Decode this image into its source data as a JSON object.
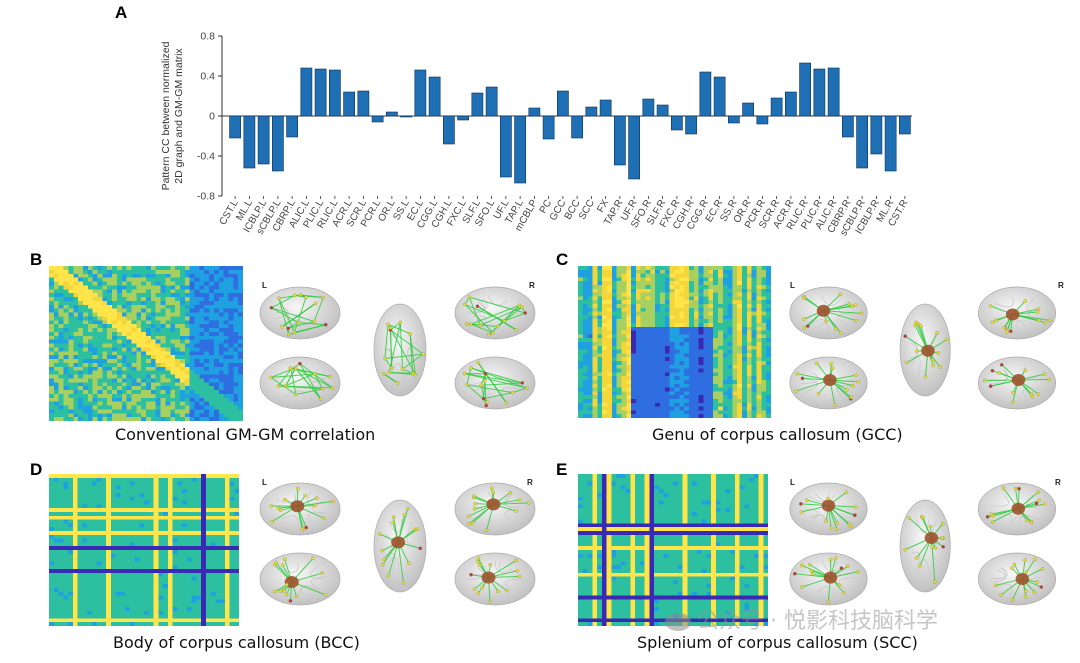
{
  "panels": {
    "a": {
      "letter": "A"
    },
    "b": {
      "letter": "B",
      "caption": "Conventional GM-GM correlation",
      "hemi_left": "L",
      "hemi_right": "R"
    },
    "c": {
      "letter": "C",
      "caption": "Genu of corpus callosum (GCC)",
      "hemi_left": "L",
      "hemi_right": "R"
    },
    "d": {
      "letter": "D",
      "caption": "Body of corpus callosum (BCC)",
      "hemi_left": "L",
      "hemi_right": "R"
    },
    "e": {
      "letter": "E",
      "caption": "Splenium of corpus callosum (SCC)",
      "hemi_left": "L",
      "hemi_right": "R"
    }
  },
  "watermark": {
    "text": "公众号 · 悦影科技脑科学"
  },
  "colors": {
    "bar": "#1f6fb5",
    "bar_edge": "#0b2f55",
    "edge_green": "#2ecc40",
    "node_yellow": "#e8e020",
    "node_red": "#c0392b",
    "tract_brown": "#a0522d",
    "matrix_palette": [
      "#3a2ab3",
      "#2f6ee0",
      "#1fa0e0",
      "#2cc0a0",
      "#a8d060",
      "#f5d63a",
      "#ffe44a"
    ]
  },
  "chart_data": {
    "type": "bar",
    "ylabel": "Pattern CC between normalized 2D graph and GM-GM matrix",
    "ylim": [
      -0.8,
      0.8
    ],
    "yticks": [
      "0.8",
      "0.4",
      "0",
      "-0.4",
      "-0.8"
    ],
    "categories": [
      "CST.L",
      "ML.L",
      "ICBLP.L",
      "sCBLP.L",
      "CBRP.L",
      "ALIC.L",
      "PLIC.L",
      "RLIC.L",
      "ACR.L",
      "SCR.L",
      "PCR.L",
      "OR.L",
      "SS.L",
      "EC.L",
      "CGG.L",
      "CGH.L",
      "FXC.L",
      "SLF.L",
      "SFO.L",
      "UF.L",
      "TAP.L",
      "mCBLP",
      "PC",
      "GCC",
      "BCC",
      "SCC",
      "FX",
      "TAP.R",
      "UF.R",
      "SFO.R",
      "SLF.R",
      "FXC.R",
      "CGH.R",
      "CGG.R",
      "EC.R",
      "SS.R",
      "OR.R",
      "PCR.R",
      "SCR.R",
      "ACR.R",
      "RLIC.R",
      "PLIC.R",
      "ALIC.R",
      "CBRP.R",
      "sCBLP.R",
      "ICBLP.R",
      "ML.R",
      "CST.R"
    ],
    "values": [
      -0.22,
      -0.52,
      -0.48,
      -0.55,
      -0.21,
      0.48,
      0.47,
      0.46,
      0.24,
      0.25,
      -0.06,
      0.04,
      -0.01,
      0.46,
      0.39,
      -0.28,
      -0.04,
      0.23,
      0.29,
      -0.61,
      -0.67,
      0.08,
      -0.23,
      0.25,
      -0.22,
      0.09,
      0.16,
      -0.49,
      -0.63,
      0.17,
      0.11,
      -0.14,
      -0.18,
      0.44,
      0.39,
      -0.07,
      0.13,
      -0.08,
      0.18,
      0.24,
      0.53,
      0.47,
      0.48,
      -0.21,
      -0.52,
      -0.38,
      -0.55,
      -0.18
    ]
  }
}
